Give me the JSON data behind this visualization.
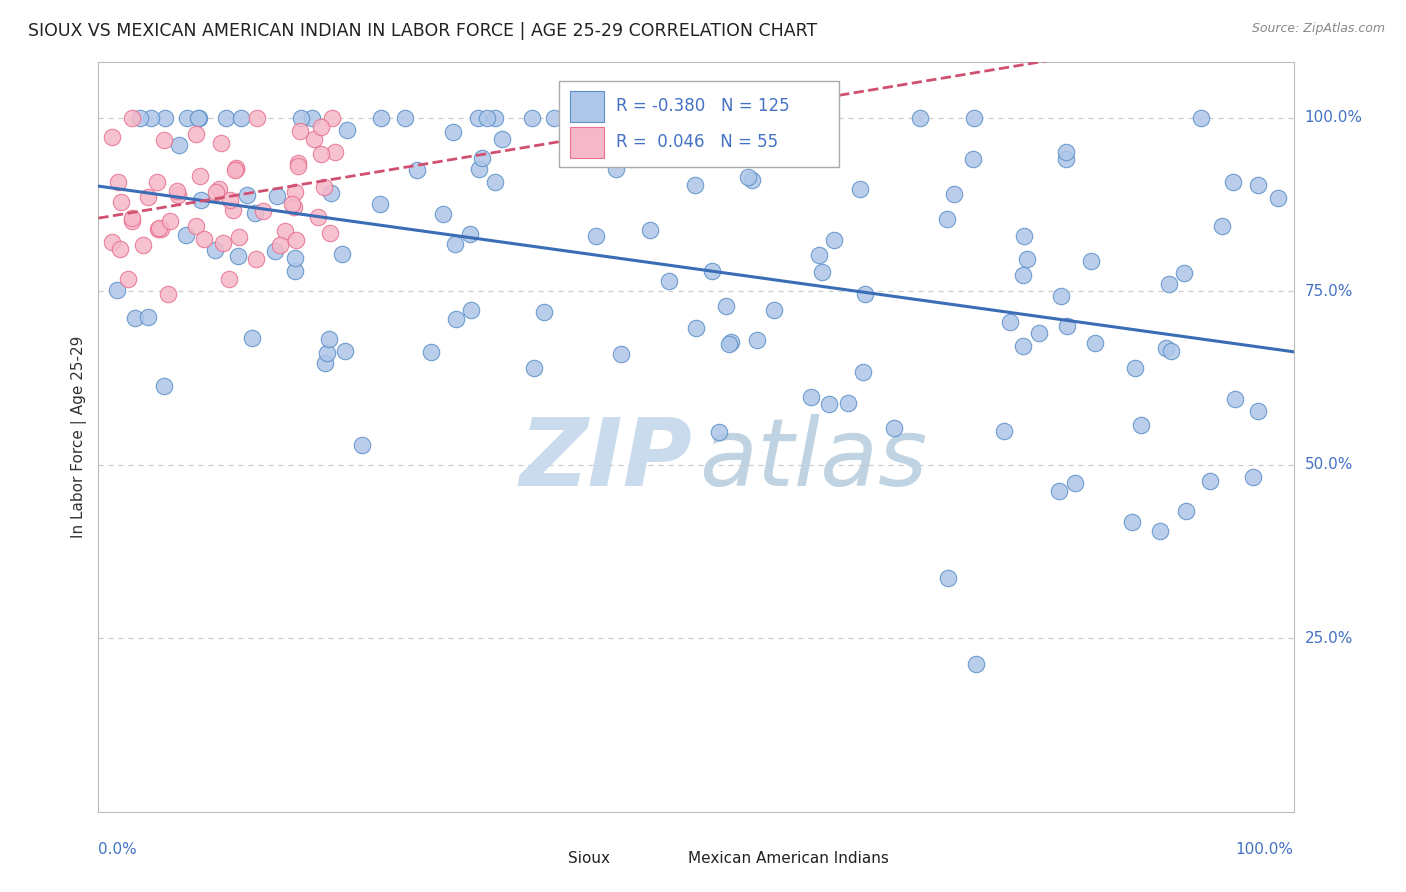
{
  "title": "SIOUX VS MEXICAN AMERICAN INDIAN IN LABOR FORCE | AGE 25-29 CORRELATION CHART",
  "source": "Source: ZipAtlas.com",
  "xlabel_bottom_left": "0.0%",
  "xlabel_bottom_right": "100.0%",
  "ylabel": "In Labor Force | Age 25-29",
  "ytick_labels": [
    "25.0%",
    "50.0%",
    "75.0%",
    "100.0%"
  ],
  "ytick_values": [
    0.25,
    0.5,
    0.75,
    1.0
  ],
  "legend_sioux_R": "-0.380",
  "legend_sioux_N": "125",
  "legend_mexican_R": "0.046",
  "legend_mexican_N": "55",
  "sioux_color": "#aec6e8",
  "sioux_edge_color": "#5b8fc9",
  "sioux_line_color": "#3a6db5",
  "mexican_color": "#f5b8c8",
  "mexican_edge_color": "#e87090",
  "mexican_line_color": "#d05070",
  "background_color": "#ffffff",
  "grid_color": "#cccccc",
  "title_color": "#222222",
  "right_label_color": "#4472c4",
  "watermark_zip_color": "#c5d8ed",
  "watermark_atlas_color": "#b8cfe0"
}
